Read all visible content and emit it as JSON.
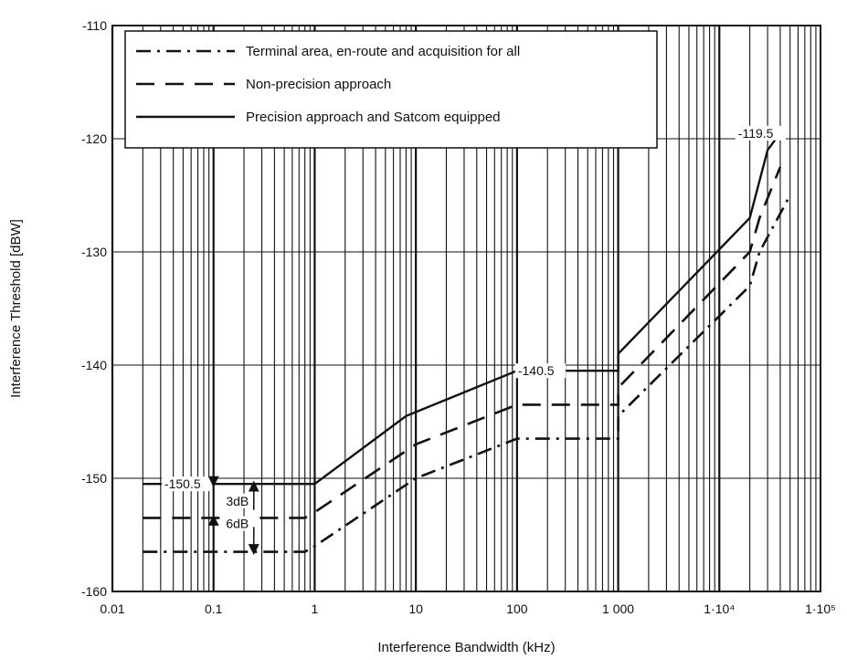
{
  "chart_data": {
    "type": "line",
    "xlabel": "Interference Bandwidth (kHz)",
    "ylabel": "Interference Threshold [dBW]",
    "x_scale": "log",
    "xlim": [
      0.01,
      100000
    ],
    "ylim": [
      -160,
      -110
    ],
    "grid": true,
    "legend_position": "top-left",
    "x_ticks": [
      {
        "value": 0.01,
        "label": "0.01"
      },
      {
        "value": 0.1,
        "label": "0.1"
      },
      {
        "value": 1,
        "label": "1"
      },
      {
        "value": 10,
        "label": "10"
      },
      {
        "value": 100,
        "label": "100"
      },
      {
        "value": 1000,
        "label": "1 000"
      },
      {
        "value": 10000,
        "label": "1·10⁴"
      },
      {
        "value": 100000,
        "label": "1·10⁵"
      }
    ],
    "y_ticks": [
      {
        "value": -110,
        "label": "-110"
      },
      {
        "value": -120,
        "label": "-120"
      },
      {
        "value": -130,
        "label": "-130"
      },
      {
        "value": -140,
        "label": "-140"
      },
      {
        "value": -150,
        "label": "-150"
      },
      {
        "value": -160,
        "label": "-160"
      }
    ],
    "series": [
      {
        "name": "Terminal area, en-route and acquisition for all",
        "style": "dashdot",
        "points": [
          [
            0.02,
            -156.5
          ],
          [
            0.8,
            -156.5
          ],
          [
            1,
            -156
          ],
          [
            10,
            -150
          ],
          [
            100,
            -146.5
          ],
          [
            1000,
            -146.5
          ],
          [
            1000,
            -144.5
          ],
          [
            20000,
            -133
          ],
          [
            25000,
            -130
          ],
          [
            50000,
            -125
          ]
        ]
      },
      {
        "name": "Non-precision approach",
        "style": "dashed",
        "points": [
          [
            0.02,
            -153.5
          ],
          [
            0.8,
            -153.5
          ],
          [
            1,
            -153
          ],
          [
            10,
            -147
          ],
          [
            100,
            -143.5
          ],
          [
            1000,
            -143.5
          ],
          [
            1000,
            -142
          ],
          [
            20000,
            -130
          ],
          [
            25000,
            -127
          ],
          [
            40000,
            -122.5
          ]
        ]
      },
      {
        "name": "Precision approach and Satcom equipped",
        "style": "solid",
        "points": [
          [
            0.02,
            -150.5
          ],
          [
            1,
            -150.5
          ],
          [
            8,
            -144.5
          ],
          [
            100,
            -140.5
          ],
          [
            1000,
            -140.5
          ],
          [
            1000,
            -139
          ],
          [
            20000,
            -127
          ],
          [
            30000,
            -121
          ],
          [
            40000,
            -119.5
          ]
        ]
      }
    ],
    "annotations": [
      {
        "text": "-150.5",
        "x": 0.032,
        "y": -150.5
      },
      {
        "text": "3dB",
        "x": 0.13,
        "y": -152
      },
      {
        "text": "6dB",
        "x": 0.13,
        "y": -154
      },
      {
        "text": "-140.5",
        "x": 100,
        "y": -140.5
      },
      {
        "text": "-119.5",
        "x": 15000,
        "y": -119.5
      }
    ]
  }
}
